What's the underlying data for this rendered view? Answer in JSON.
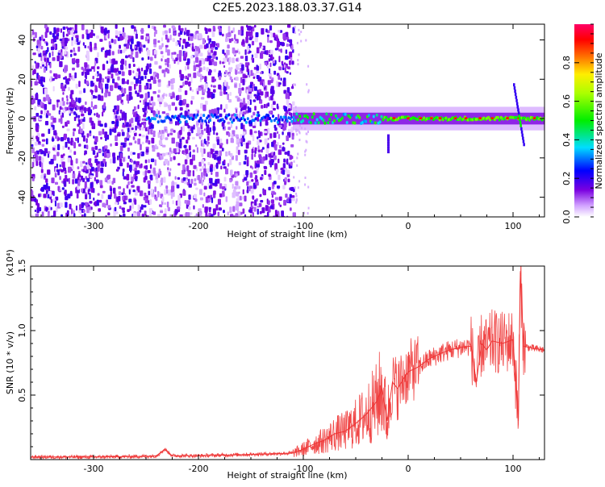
{
  "figure_title": "C2E5.2023.188.03.37.G14",
  "chart_data": [
    {
      "type": "heatmap",
      "title": "",
      "xlabel": "Height of straight line (km)",
      "ylabel": "Frequency (Hz)",
      "xlim": [
        -360,
        130
      ],
      "ylim": [
        -50,
        48
      ],
      "x_ticks": [
        -300,
        -200,
        -100,
        0,
        100
      ],
      "y_ticks": [
        -40,
        -20,
        0,
        20,
        40
      ],
      "x_tick_labels": [
        "-300",
        "-200",
        "-100",
        "0",
        "100"
      ],
      "y_tick_labels": [
        "-40",
        "-20",
        "0",
        "20",
        "40"
      ],
      "colorbar": {
        "label": "Normalized spectral amplitude",
        "range": [
          0,
          1
        ],
        "ticks": [
          0.0,
          0.2,
          0.4,
          0.6,
          0.8
        ],
        "tick_labels": [
          "0.0",
          "0.2",
          "0.4",
          "0.6",
          "0.8"
        ],
        "colormap": "rainbow (white-violet-blue-cyan-green-yellow-red-magenta)"
      },
      "features": {
        "noise_region_x": [
          -360,
          -110
        ],
        "signal_line_frequency_hz": 0,
        "signal_start_x": -110,
        "spike_near_x": 105
      },
      "grid": false
    },
    {
      "type": "line",
      "title": "",
      "xlabel": "Height of straight line (km)",
      "ylabel": "SNR (10 * v/v)",
      "y_scale_label": "(x10⁴)",
      "xlim": [
        -360,
        130
      ],
      "ylim": [
        0,
        1.5
      ],
      "x_ticks": [
        -300,
        -200,
        -100,
        0,
        100
      ],
      "y_ticks": [
        0.5,
        1.0,
        1.5
      ],
      "x_tick_labels": [
        "-300",
        "-200",
        "-100",
        "0",
        "100"
      ],
      "y_tick_labels": [
        "0.5",
        "1.0",
        "1.5"
      ],
      "series_color": "#ee3333",
      "x": [
        -360,
        -300,
        -250,
        -240,
        -232,
        -225,
        -200,
        -150,
        -110,
        -100,
        -90,
        -80,
        -70,
        -60,
        -50,
        -40,
        -30,
        -25,
        -20,
        -15,
        -10,
        -5,
        0,
        10,
        20,
        30,
        40,
        50,
        60,
        65,
        70,
        75,
        80,
        90,
        100,
        105,
        107,
        110,
        115,
        120,
        130
      ],
      "values": [
        0.02,
        0.02,
        0.025,
        0.03,
        0.08,
        0.03,
        0.03,
        0.04,
        0.05,
        0.08,
        0.12,
        0.15,
        0.2,
        0.22,
        0.28,
        0.35,
        0.45,
        0.55,
        0.3,
        0.6,
        0.55,
        0.62,
        0.68,
        0.72,
        0.78,
        0.82,
        0.85,
        0.87,
        0.88,
        0.6,
        0.9,
        0.85,
        0.92,
        0.9,
        0.93,
        0.3,
        1.45,
        0.88,
        0.87,
        0.86,
        0.85
      ],
      "grid": false
    }
  ]
}
